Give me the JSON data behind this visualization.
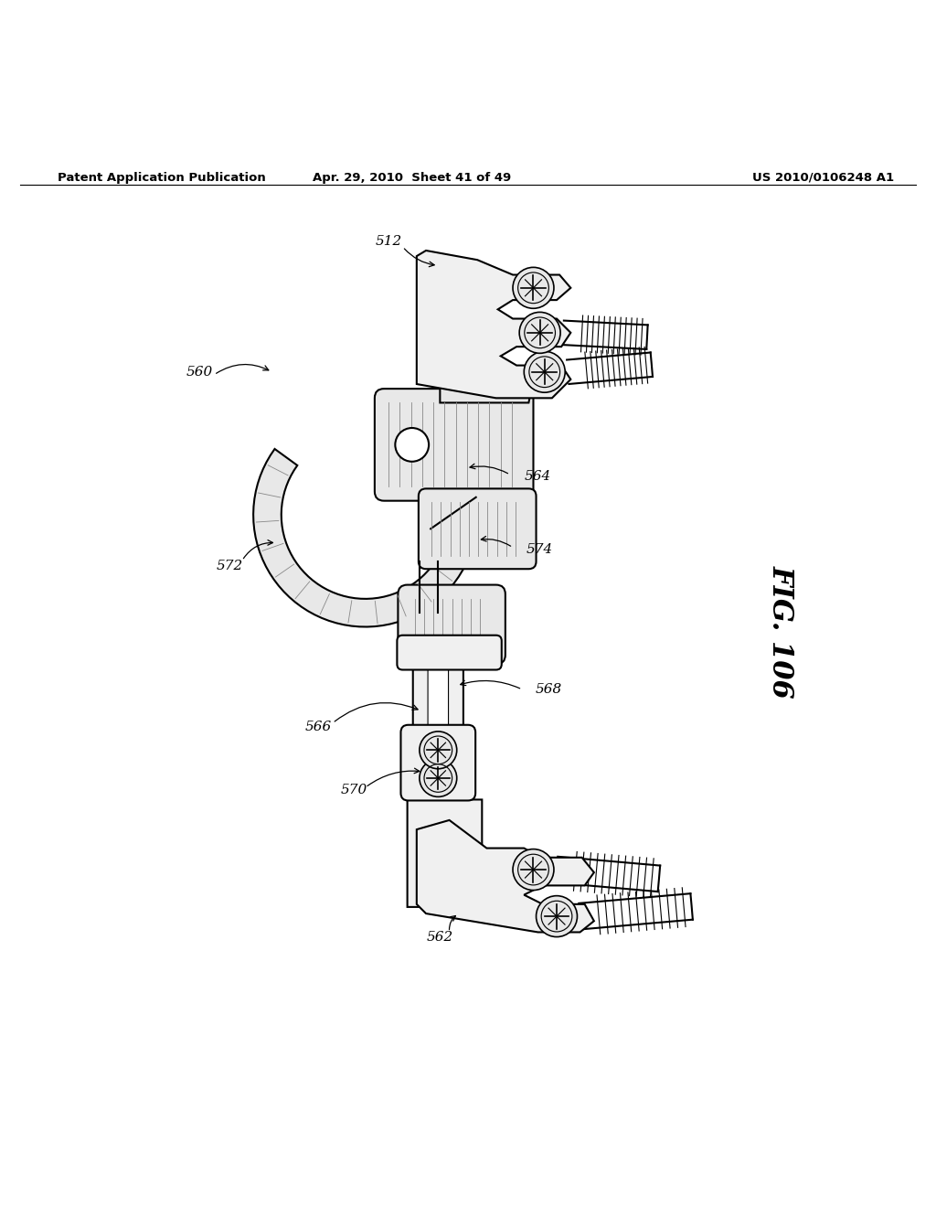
{
  "bg_color": "#ffffff",
  "header_left": "Patent Application Publication",
  "header_center": "Apr. 29, 2010  Sheet 41 of 49",
  "header_right": "US 2010/0106248 A1",
  "fig_label": "FIG. 106",
  "label_fontsize": 11,
  "header_fontsize": 9.5,
  "fig_label_fontsize": 22
}
